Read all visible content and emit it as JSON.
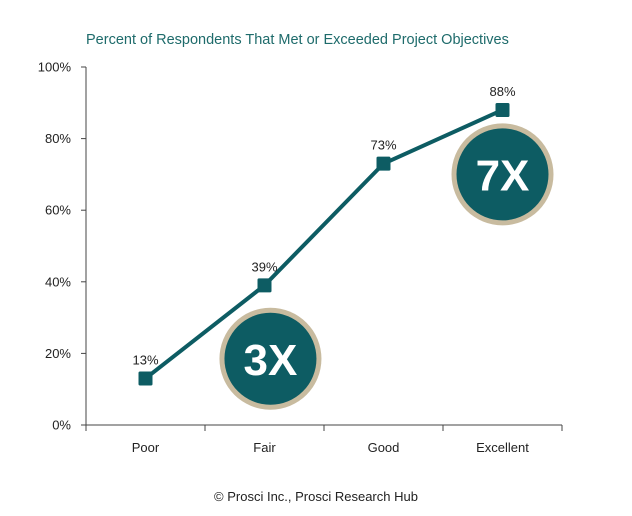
{
  "chart_data": {
    "type": "line",
    "title": "Percent of Respondents That Met or Exceeded Project Objectives",
    "categories": [
      "Poor",
      "Fair",
      "Good",
      "Excellent"
    ],
    "values": [
      13,
      39,
      73,
      88
    ],
    "data_labels": [
      "13%",
      "39%",
      "73%",
      "88%"
    ],
    "ylim": [
      0,
      100
    ],
    "yticks": [
      0,
      20,
      40,
      60,
      80,
      100
    ],
    "ytick_labels": [
      "0%",
      "20%",
      "40%",
      "60%",
      "80%",
      "100%"
    ],
    "grid": false,
    "legend": "none",
    "annotations": [
      {
        "text": "3X",
        "near_category": "Fair"
      },
      {
        "text": "7X",
        "near_category": "Excellent"
      }
    ],
    "colors": {
      "line": "#0d5c63",
      "badge_fill": "#0d5c63",
      "badge_ring": "#c8bb9f",
      "title": "#1e6b6b"
    }
  },
  "footer": "© Prosci Inc., Prosci Research Hub"
}
